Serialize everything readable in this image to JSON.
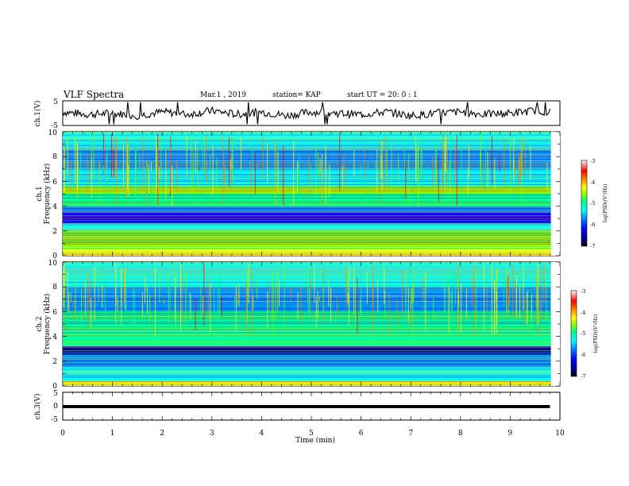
{
  "header": {
    "title": "VLF Spectra",
    "date": "Mar.1 , 2019",
    "station": "station= KAP",
    "start": "start UT =  20: 0 : 1"
  },
  "colors": {
    "colormap": [
      "#000000",
      "#00008b",
      "#0000ff",
      "#0088ff",
      "#00ffff",
      "#00ff88",
      "#88ff00",
      "#ffff00",
      "#ff8800",
      "#ff0000",
      "#ffffff"
    ]
  },
  "chart_data": [
    {
      "type": "line",
      "panel": "ch1-waveform",
      "ylabel": "ch.1(V)",
      "ylim": [
        -5,
        5
      ],
      "yticks": [
        "5",
        "-5"
      ],
      "x": [
        0,
        0.5,
        1,
        1.5,
        2,
        2.5,
        3,
        3.5,
        4,
        4.5,
        5,
        5.5,
        6,
        6.5,
        7,
        7.5,
        8,
        8.5,
        9,
        9.5,
        9.8
      ],
      "y": [
        0.5,
        -0.5,
        0,
        -1,
        0.5,
        -0.5,
        1,
        -0.5,
        0.5,
        -1,
        0.5,
        0,
        -0.5,
        0.5,
        -1,
        0,
        0.5,
        -0.5,
        0,
        1,
        0.5
      ]
    },
    {
      "type": "heatmap",
      "panel": "ch1-spectrogram",
      "ylabel": "ch.1\nFrequency (kHz)",
      "ylim": [
        0,
        10
      ],
      "yticks": [
        "0",
        "2",
        "4",
        "6",
        "8",
        "10"
      ],
      "colorbar": {
        "label": "log(PSD)(V²/Hz)",
        "range": [
          -7,
          -3
        ],
        "ticks": [
          "-3",
          "-4",
          "-5",
          "-6",
          "-7"
        ]
      },
      "bands_khz": [
        {
          "from": 0,
          "to": 0.5,
          "level": -4.2
        },
        {
          "from": 0.5,
          "to": 1.2,
          "level": -5.0
        },
        {
          "from": 1.2,
          "to": 2.0,
          "level": -4.7
        },
        {
          "from": 2.0,
          "to": 2.6,
          "level": -5.6
        },
        {
          "from": 2.6,
          "to": 3.5,
          "level": -6.7
        },
        {
          "from": 3.5,
          "to": 4.0,
          "level": -6.2
        },
        {
          "from": 4.0,
          "to": 5.0,
          "level": -5.2
        },
        {
          "from": 5.0,
          "to": 5.6,
          "level": -5.0
        },
        {
          "from": 5.6,
          "to": 7.0,
          "level": -5.7
        },
        {
          "from": 7.0,
          "to": 8.5,
          "level": -5.9
        },
        {
          "from": 8.5,
          "to": 10,
          "level": -5.5
        }
      ]
    },
    {
      "type": "heatmap",
      "panel": "ch2-spectrogram",
      "ylabel": "ch.2\nFrequency (kHz)",
      "ylim": [
        0,
        10
      ],
      "yticks": [
        "0",
        "2",
        "4",
        "6",
        "8",
        "10"
      ],
      "colorbar": {
        "label": "log(PSD)(V²/Hz)",
        "range": [
          -7,
          -3
        ],
        "ticks": [
          "-3",
          "-4",
          "-5",
          "-6",
          "-7"
        ]
      },
      "bands_khz": [
        {
          "from": 0,
          "to": 0.4,
          "level": -4.2
        },
        {
          "from": 0.4,
          "to": 1.5,
          "level": -5.6
        },
        {
          "from": 1.5,
          "to": 2.5,
          "level": -6.0
        },
        {
          "from": 2.5,
          "to": 3.2,
          "level": -6.9
        },
        {
          "from": 3.2,
          "to": 3.8,
          "level": -5.4
        },
        {
          "from": 3.8,
          "to": 5.0,
          "level": -5.1
        },
        {
          "from": 5.0,
          "to": 6.0,
          "level": -5.1
        },
        {
          "from": 6.0,
          "to": 6.6,
          "level": -6.2
        },
        {
          "from": 6.6,
          "to": 8.0,
          "level": -6.0
        },
        {
          "from": 8.0,
          "to": 10,
          "level": -5.8
        }
      ]
    },
    {
      "type": "line",
      "panel": "ch3-waveform",
      "ylabel": "ch.3(V)",
      "ylim": [
        -5,
        5
      ],
      "yticks": [
        "5",
        "0",
        "-5"
      ],
      "x": [
        0,
        9.8
      ],
      "y": [
        0,
        0
      ]
    }
  ],
  "xaxis": {
    "label": "Time (min)",
    "range": [
      0,
      10
    ],
    "ticks": [
      "0",
      "1",
      "2",
      "3",
      "4",
      "5",
      "6",
      "7",
      "8",
      "9",
      "10"
    ]
  }
}
